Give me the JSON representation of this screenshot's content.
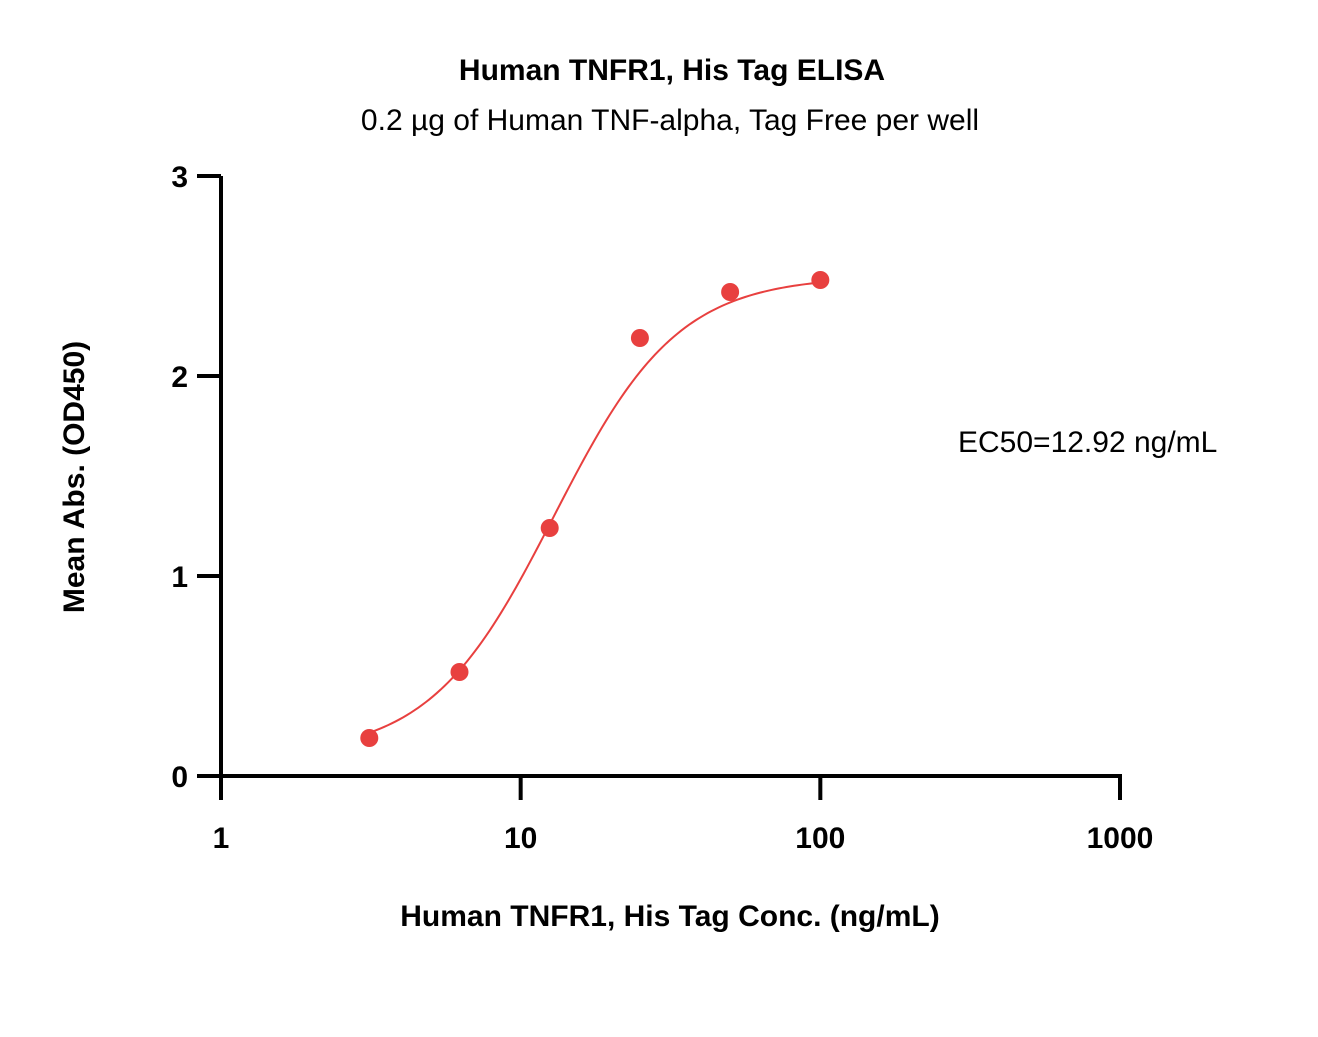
{
  "chart_data": {
    "type": "scatter",
    "title": "Human TNFR1, His Tag ELISA",
    "subtitle": "0.2 µg of Human TNF-alpha, Tag Free per well",
    "xlabel": "Human TNFR1, His Tag Conc. (ng/mL)",
    "ylabel": "Mean Abs. (OD450)",
    "x_scale": "log",
    "xlim": [
      1,
      1000
    ],
    "ylim": [
      0,
      3
    ],
    "x_ticks": [
      1,
      10,
      100,
      1000
    ],
    "x_tick_labels": [
      "1",
      "10",
      "100",
      "1000"
    ],
    "y_ticks": [
      0,
      1,
      2,
      3
    ],
    "y_tick_labels": [
      "0",
      "1",
      "2",
      "3"
    ],
    "grid": false,
    "series": [
      {
        "color": "#e8403f",
        "x": [
          3.125,
          6.25,
          12.5,
          25,
          50,
          100
        ],
        "y": [
          0.19,
          0.52,
          1.24,
          2.19,
          2.42,
          2.48
        ],
        "fit": {
          "model": "4PL",
          "bottom": 0.1,
          "top": 2.5,
          "ec50": 12.92,
          "hill": 2.1,
          "x_range": [
            3.125,
            100
          ]
        }
      }
    ],
    "annotations": [
      "EC50=12.92 ng/mL"
    ]
  }
}
